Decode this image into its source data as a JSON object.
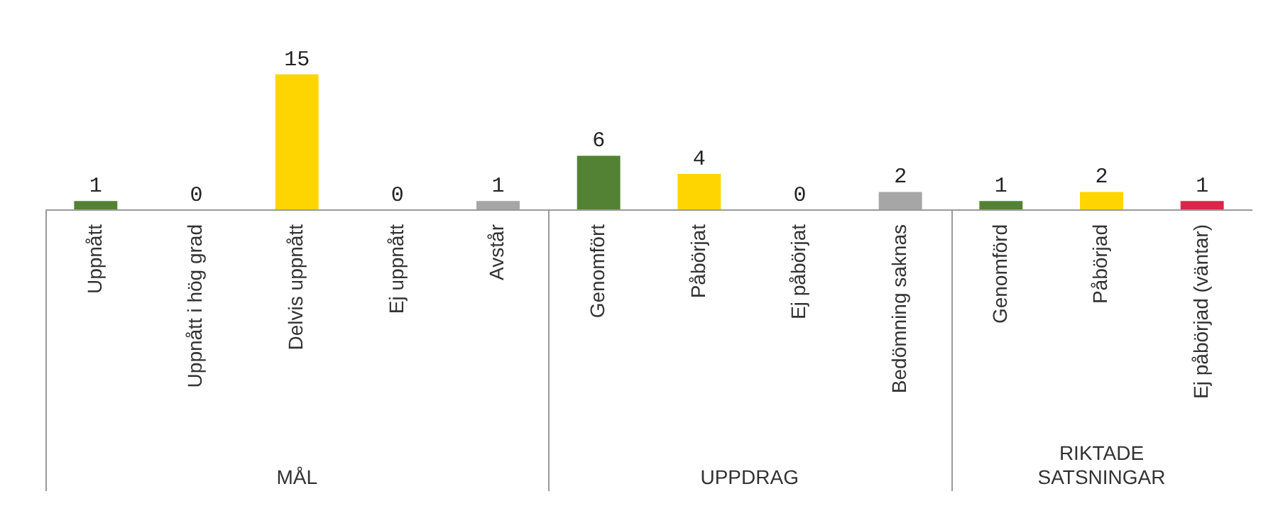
{
  "chart_data": {
    "type": "bar",
    "categories": [
      "Uppnått",
      "Uppnått i hög grad",
      "Delvis uppnått",
      "Ej uppnått",
      "Avstår",
      "Genomfört",
      "Påbörjat",
      "Ej påbörjat",
      "Bedömning saknas",
      "Genomförd",
      "Påbörjad",
      "Ej påbörjad (väntar)"
    ],
    "values": [
      1,
      0,
      15,
      0,
      1,
      6,
      4,
      0,
      2,
      1,
      2,
      1
    ],
    "colors": [
      "#548235",
      "#a6a6a6",
      "#ffd500",
      "#a6a6a6",
      "#a6a6a6",
      "#548235",
      "#ffd500",
      "#a6a6a6",
      "#a6a6a6",
      "#548235",
      "#ffd500",
      "#d9264a"
    ],
    "data_labels": true,
    "annotations": [
      "MÅL",
      "UPPDRAG",
      "RIKTADE SATSNINGAR"
    ],
    "grid": false,
    "legend": false
  }
}
